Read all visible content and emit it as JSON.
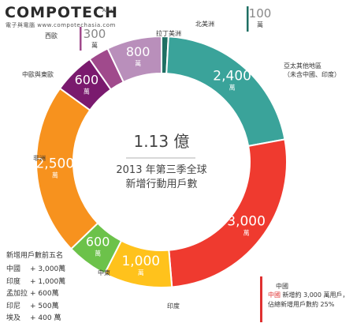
{
  "logo": {
    "title": "COMPOTECH",
    "sup": "Asia",
    "tagline": "電子與電腦 www.compotechasia.com"
  },
  "chart_data": {
    "type": "pie",
    "title": "1.13 億",
    "subtitle_lines": [
      "2013 年第三季全球",
      "新增行動用戶數"
    ],
    "unit": "萬",
    "slices": [
      {
        "label": "北美洲",
        "value": 100,
        "value_text": "100",
        "color": "#1f6f63",
        "label_position": "outside"
      },
      {
        "label": "亞太其他地區\n（未含中國、印度）",
        "value": 2400,
        "value_text": "2,400",
        "color": "#3aa39a",
        "label_position": "inside"
      },
      {
        "label": "中國",
        "value": 3000,
        "value_text": "3,000",
        "color": "#ef3a2f",
        "label_position": "inside"
      },
      {
        "label": "印度",
        "value": 1000,
        "value_text": "1,000",
        "color": "#ffc21c",
        "label_position": "inside"
      },
      {
        "label": "中東",
        "value": 600,
        "value_text": "600",
        "color": "#6cc24a",
        "label_position": "inside"
      },
      {
        "label": "非洲",
        "value": 2500,
        "value_text": "2,500",
        "color": "#f7921e",
        "label_position": "inside"
      },
      {
        "label": "中歐與東歐",
        "value": 600,
        "value_text": "600",
        "color": "#7a1a6e",
        "label_position": "inside"
      },
      {
        "label": "西歐",
        "value": 300,
        "value_text": "300",
        "color": "#a04a8c",
        "label_position": "outside"
      },
      {
        "label": "拉丁美洲",
        "value": 800,
        "value_text": "800",
        "color": "#b98fbb",
        "label_position": "inside"
      }
    ]
  },
  "top5": {
    "heading": "新增用戶數前五名",
    "rows": [
      {
        "name": "中國",
        "value": "+ 3,000萬"
      },
      {
        "name": "印度",
        "value": "+ 1,000萬"
      },
      {
        "name": "孟加拉",
        "value": "+ 600萬"
      },
      {
        "name": "印尼",
        "value": "+ 500萬"
      },
      {
        "name": "埃及",
        "value": "+ 400 萬"
      }
    ]
  },
  "note": {
    "highlight": "中國",
    "line1_rest": "新增約 3,000 萬用戶，",
    "line2": "佔總新增用戶數約 25%"
  }
}
